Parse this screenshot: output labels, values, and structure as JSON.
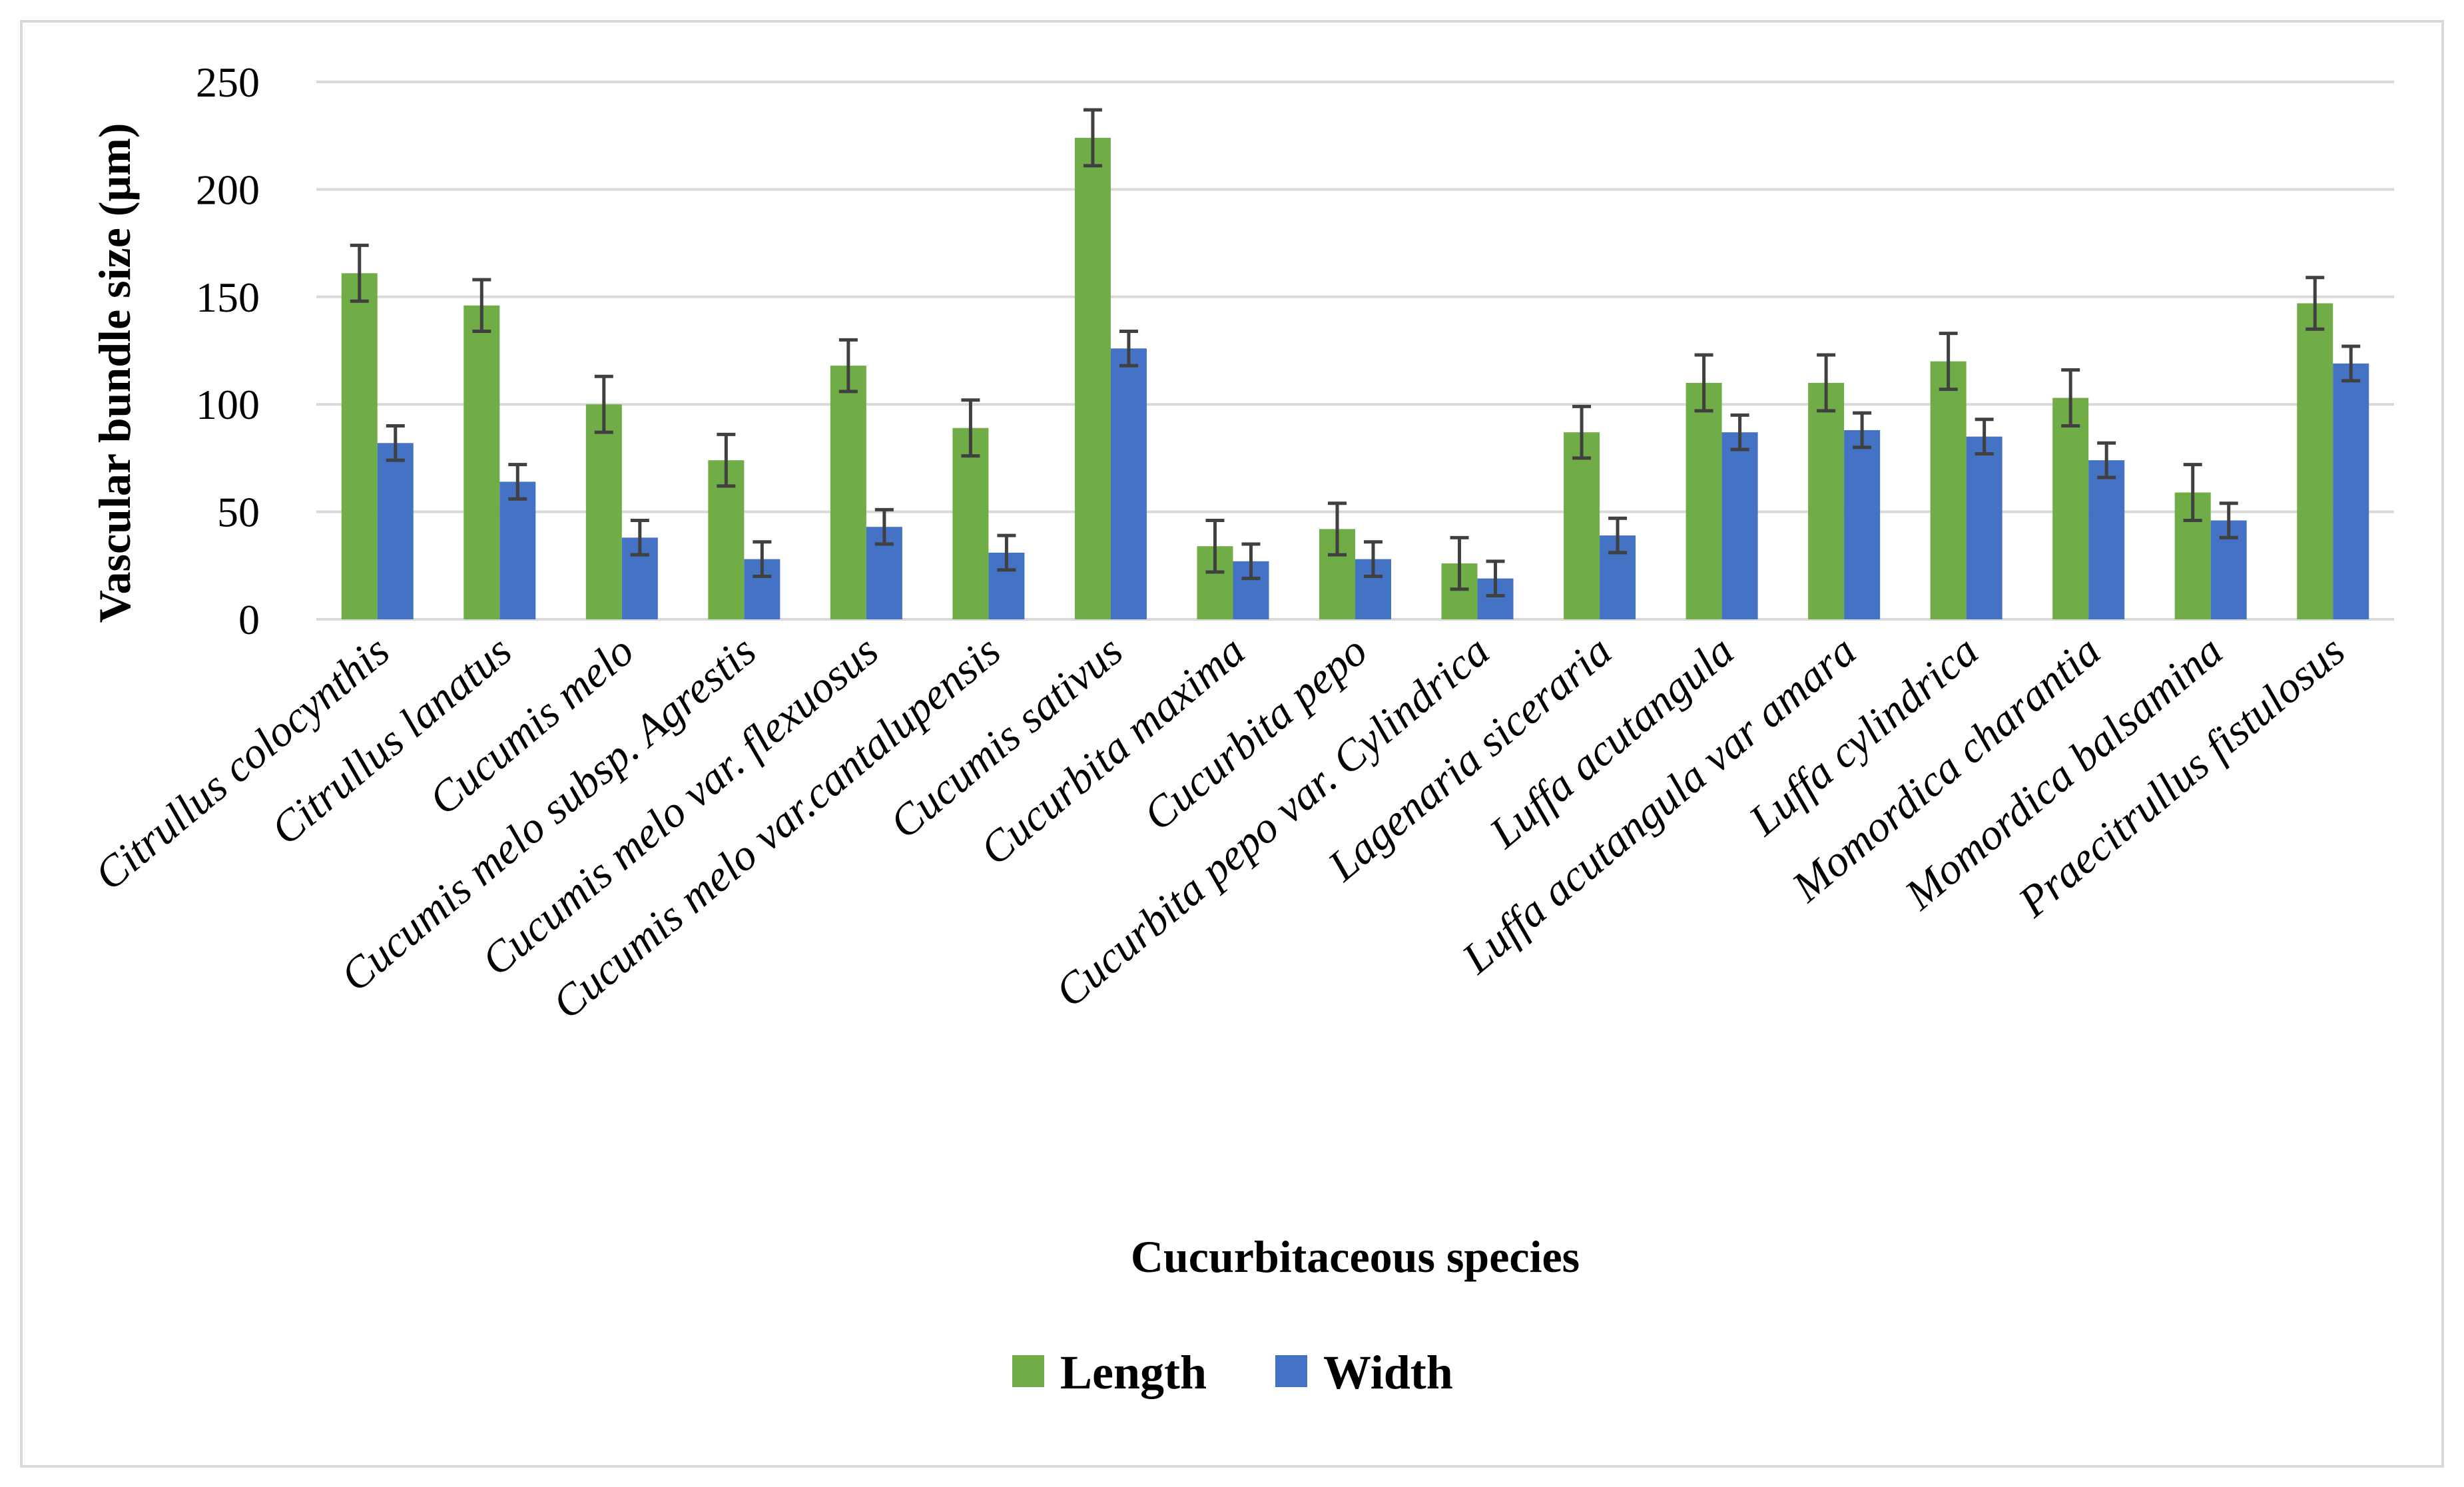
{
  "chart_data": {
    "type": "bar",
    "title": "",
    "xlabel": "Cucurbitaceous species",
    "ylabel": "Vascular bundle size (μm)",
    "ylim": [
      0,
      250
    ],
    "yticks": [
      0,
      50,
      100,
      150,
      200,
      250
    ],
    "grid": true,
    "legend_position": "bottom",
    "categories": [
      "Citrullus colocynthis",
      "Citrullus lanatus",
      "Cucumis melo",
      "Cucumis melo subsp. Agrestis",
      "Cucumis melo var. flexuosus",
      "Cucumis melo var.cantalupensis",
      "Cucumis sativus",
      "Cucurbita maxima",
      "Cucurbita pepo",
      "Cucurbita pepo var. Cylindrica",
      "Lagenaria siceraria",
      "Luffa acutangula",
      "Luffa acutangula var amara",
      "Luffa cylindrica",
      "Momordica charantia",
      "Momordica balsamina",
      "Praecitrullus fistulosus"
    ],
    "series": [
      {
        "name": "Length",
        "color": "#70ad47",
        "values": [
          161,
          146,
          100,
          74,
          118,
          89,
          224,
          34,
          42,
          26,
          87,
          110,
          110,
          120,
          103,
          59,
          147
        ],
        "errors": [
          13,
          12,
          13,
          12,
          12,
          13,
          13,
          12,
          12,
          12,
          12,
          13,
          13,
          13,
          13,
          13,
          12
        ]
      },
      {
        "name": "Width",
        "color": "#4472c4",
        "values": [
          82,
          64,
          38,
          28,
          43,
          31,
          126,
          27,
          28,
          19,
          39,
          87,
          88,
          85,
          74,
          46,
          119
        ],
        "errors": [
          8,
          8,
          8,
          8,
          8,
          8,
          8,
          8,
          8,
          8,
          8,
          8,
          8,
          8,
          8,
          8,
          8
        ]
      }
    ],
    "colors": {
      "grid": "#d9d9d9",
      "error_bar": "#404040",
      "frame": "#d9d9d9"
    }
  }
}
